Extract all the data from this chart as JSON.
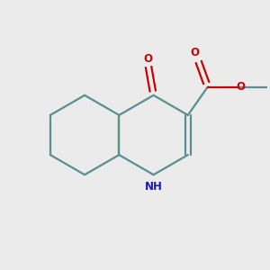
{
  "background_color": "#ebebeb",
  "bond_color": "#5a9090",
  "bond_width": 1.6,
  "atom_colors": {
    "N": "#1818bb",
    "O": "#cc0000",
    "C": "#5a9090"
  },
  "font_size_N": 8.5,
  "font_size_O": 8.5,
  "font_size_CH3": 7.5,
  "xlim": [
    -2.2,
    2.8
  ],
  "ylim": [
    -1.8,
    1.8
  ]
}
